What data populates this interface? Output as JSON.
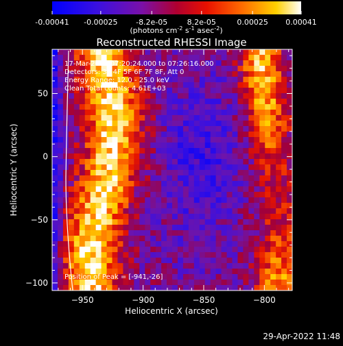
{
  "colorbar": {
    "ticks": [
      "-0.00041",
      "-0.00025",
      "-8.2e-05",
      "8.2e-05",
      "0.00025",
      "0.00041"
    ],
    "tick_values": [
      -0.00041,
      -0.00025,
      -8.2e-05,
      8.2e-05,
      0.00025,
      0.00041
    ],
    "range": [
      -0.00041,
      0.00041
    ],
    "units_prefix": "(photons cm",
    "units_exp1": "-2",
    "units_mid": " s",
    "units_exp2": "-1",
    "units_mid2": " asec",
    "units_exp3": "-2",
    "units_suffix": ")",
    "colors": [
      "#0000ff",
      "#5a00c8",
      "#8a0090",
      "#c80000",
      "#ff3c00",
      "#ff9a00",
      "#ffe000",
      "#ffffff"
    ]
  },
  "chart_data": {
    "type": "heatmap",
    "title": "Reconstructed RHESSI Image",
    "xlabel": "Heliocentric X (arcsec)",
    "ylabel": "Heliocentric Y (arcsec)",
    "xlim": [
      -975,
      -777
    ],
    "ylim": [
      -106,
      85
    ],
    "x_ticks": [
      -950,
      -900,
      -850,
      -800
    ],
    "y_ticks": [
      50,
      0,
      -50,
      -100
    ],
    "x_tick_labels": [
      "−950",
      "−900",
      "−850",
      "−800"
    ],
    "y_tick_labels": [
      "50",
      "0",
      "−50",
      "−100"
    ],
    "annotations": [
      "17-Mar-2004 07:20:24.000 to 07:26:16.000",
      "Detectors: 3F 4F 5F 6F 7F 8F, Att 0",
      "Energy Range: 12.0 - 25.0 keV",
      "Clean    Total counts: 4.61E+03"
    ],
    "peak_label": "Position of Peak = [-941,-26]",
    "peak": [
      -941,
      -26
    ],
    "grid": false,
    "colormap": "rhessi-diverging (blue-purple-red-yellow-white)"
  },
  "timestamp": "29-Apr-2022 11:48"
}
